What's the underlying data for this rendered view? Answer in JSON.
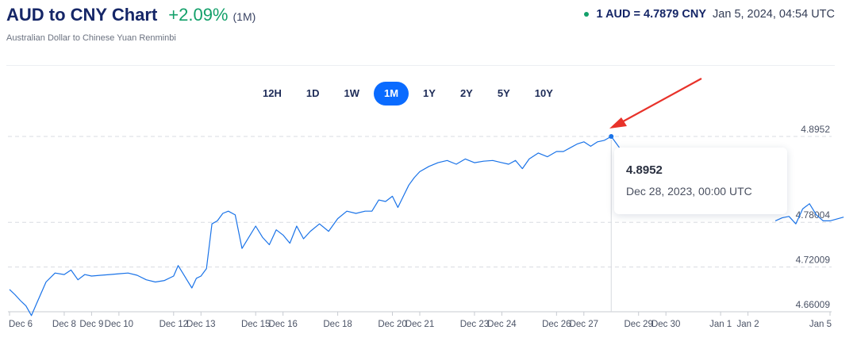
{
  "header": {
    "title": "AUD to CNY Chart",
    "change": "+2.09%",
    "period": "(1M)",
    "subtitle": "Australian Dollar to Chinese Yuan Renminbi"
  },
  "rate": {
    "value": "1 AUD = 4.7879 CNY",
    "time": "Jan 5, 2024, 04:54 UTC",
    "dot_color": "#13a06a"
  },
  "ranges": {
    "items": [
      "12H",
      "1D",
      "1W",
      "1M",
      "1Y",
      "2Y",
      "5Y",
      "10Y"
    ],
    "active": "1M"
  },
  "tooltip": {
    "value": "4.8952",
    "date": "Dec 28, 2023, 00:00 UTC"
  },
  "colors": {
    "line": "#1a73e8",
    "active_range": "#0a6bff",
    "arrow": "#e8322a",
    "change": "#13a06a"
  },
  "chart_data": {
    "type": "line",
    "x_ticks": [
      "Dec 6",
      "Dec 8",
      "Dec 9",
      "Dec 10",
      "Dec 12",
      "Dec 13",
      "Dec 15",
      "Dec 16",
      "Dec 18",
      "Dec 20",
      "Dec 21",
      "Dec 23",
      "Dec 24",
      "Dec 26",
      "Dec 27",
      "Dec 29",
      "Dec 30",
      "Jan 1",
      "Jan 2",
      "Jan 5"
    ],
    "y_ticks": [
      "4.8952",
      "4.78004",
      "4.72009",
      "4.66009"
    ],
    "ylim": [
      4.66009,
      4.8952
    ],
    "grid": "horizontal-dashed",
    "series": [
      {
        "points": [
          [
            "Dec 6",
            4.69
          ],
          [
            "Dec 6",
            4.683
          ],
          [
            "Dec 6",
            4.675
          ],
          [
            "Dec 6",
            4.668
          ],
          [
            "Dec 6",
            4.655
          ],
          [
            "Dec 7",
            4.672
          ],
          [
            "Dec 7",
            4.7
          ],
          [
            "Dec 7",
            4.712
          ],
          [
            "Dec 8",
            4.71
          ],
          [
            "Dec 8",
            4.716
          ],
          [
            "Dec 8",
            4.703
          ],
          [
            "Dec 8",
            4.71
          ],
          [
            "Dec 9",
            4.708
          ],
          [
            "Dec 9",
            4.709
          ],
          [
            "Dec 9",
            4.71
          ],
          [
            "Dec 10",
            4.711
          ],
          [
            "Dec 10",
            4.712
          ],
          [
            "Dec 10",
            4.709
          ],
          [
            "Dec 11",
            4.703
          ],
          [
            "Dec 11",
            4.7
          ],
          [
            "Dec 11",
            4.702
          ],
          [
            "Dec 12",
            4.708
          ],
          [
            "Dec 12",
            4.722
          ],
          [
            "Dec 12",
            4.712
          ],
          [
            "Dec 12",
            4.702
          ],
          [
            "Dec 12",
            4.692
          ],
          [
            "Dec 12",
            4.705
          ],
          [
            "Dec 13",
            4.708
          ],
          [
            "Dec 13",
            4.718
          ],
          [
            "Dec 13",
            4.778
          ],
          [
            "Dec 13",
            4.782
          ],
          [
            "Dec 13",
            4.792
          ],
          [
            "Dec 14",
            4.795
          ],
          [
            "Dec 14",
            4.79
          ],
          [
            "Dec 14",
            4.745
          ],
          [
            "Dec 14",
            4.76
          ],
          [
            "Dec 15",
            4.775
          ],
          [
            "Dec 15",
            4.76
          ],
          [
            "Dec 15",
            4.75
          ],
          [
            "Dec 15",
            4.77
          ],
          [
            "Dec 16",
            4.763
          ],
          [
            "Dec 16",
            4.752
          ],
          [
            "Dec 16",
            4.775
          ],
          [
            "Dec 16",
            4.758
          ],
          [
            "Dec 17",
            4.768
          ],
          [
            "Dec 17",
            4.778
          ],
          [
            "Dec 17",
            4.768
          ],
          [
            "Dec 18",
            4.785
          ],
          [
            "Dec 18",
            4.795
          ],
          [
            "Dec 18",
            4.792
          ],
          [
            "Dec 19",
            4.795
          ],
          [
            "Dec 19",
            4.795
          ],
          [
            "Dec 19",
            4.81
          ],
          [
            "Dec 19",
            4.808
          ],
          [
            "Dec 20",
            4.815
          ],
          [
            "Dec 20",
            4.8
          ],
          [
            "Dec 20",
            4.815
          ],
          [
            "Dec 20",
            4.83
          ],
          [
            "Dec 20",
            4.84
          ],
          [
            "Dec 21",
            4.848
          ],
          [
            "Dec 21",
            4.855
          ],
          [
            "Dec 21",
            4.86
          ],
          [
            "Dec 22",
            4.863
          ],
          [
            "Dec 22",
            4.858
          ],
          [
            "Dec 22",
            4.865
          ],
          [
            "Dec 23",
            4.86
          ],
          [
            "Dec 23",
            4.862
          ],
          [
            "Dec 23",
            4.863
          ],
          [
            "Dec 24",
            4.86
          ],
          [
            "Dec 24",
            4.858
          ],
          [
            "Dec 24",
            4.863
          ],
          [
            "Dec 24",
            4.852
          ],
          [
            "Dec 25",
            4.865
          ],
          [
            "Dec 25",
            4.873
          ],
          [
            "Dec 25",
            4.868
          ],
          [
            "Dec 26",
            4.875
          ],
          [
            "Dec 26",
            4.875
          ],
          [
            "Dec 26",
            4.88
          ],
          [
            "Dec 26",
            4.885
          ],
          [
            "Dec 27",
            4.888
          ],
          [
            "Dec 27",
            4.882
          ],
          [
            "Dec 27",
            4.888
          ],
          [
            "Dec 27",
            4.89
          ],
          [
            "Dec 28",
            4.8952
          ],
          [
            "Dec 28",
            4.87
          ],
          [
            "Jan 3",
            4.782
          ],
          [
            "Jan 3",
            4.786
          ],
          [
            "Jan 3",
            4.788
          ],
          [
            "Jan 3",
            4.778
          ],
          [
            "Jan 4",
            4.798
          ],
          [
            "Jan 4",
            4.805
          ],
          [
            "Jan 4",
            4.79
          ],
          [
            "Jan 4",
            4.782
          ],
          [
            "Jan 5",
            4.782
          ],
          [
            "Jan 5",
            4.787
          ]
        ]
      }
    ],
    "highlighted_point": {
      "x": "Dec 28",
      "y": 4.8952
    }
  }
}
